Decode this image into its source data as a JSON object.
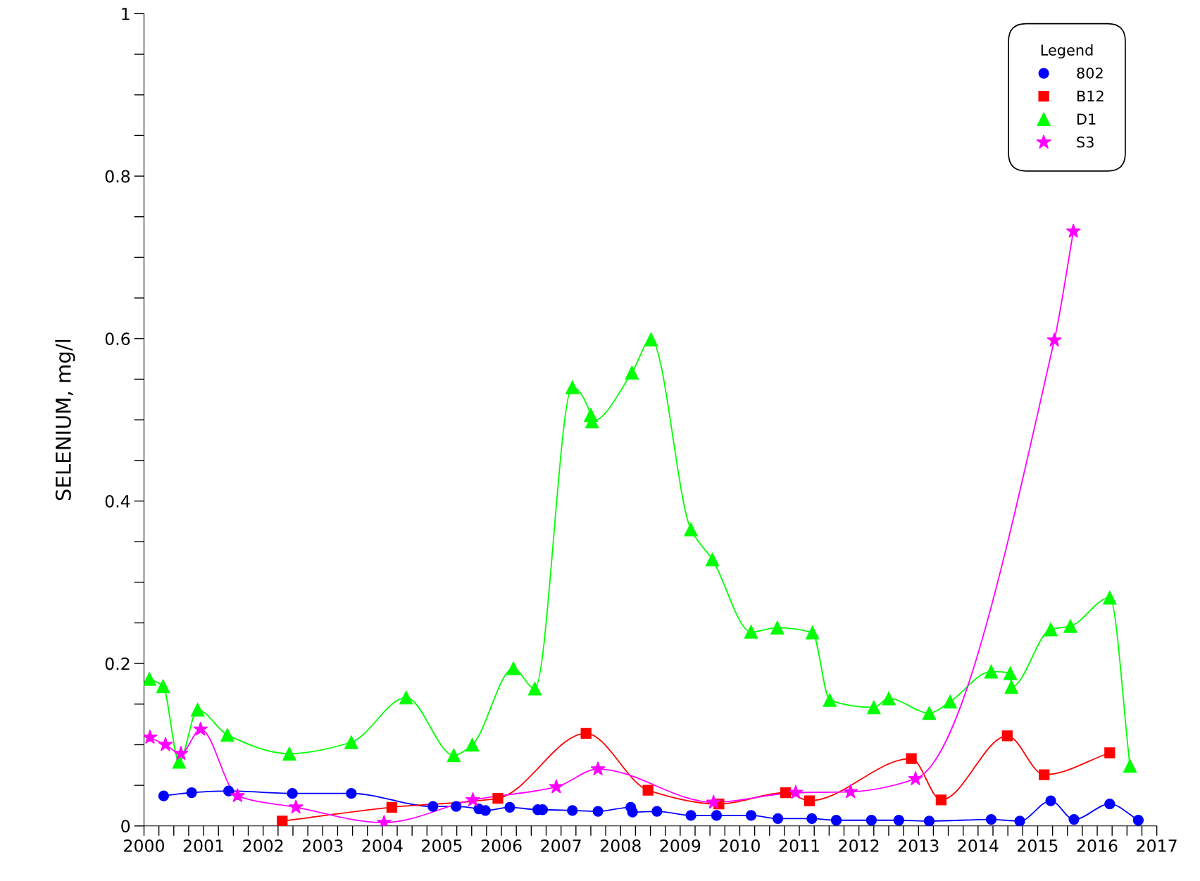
{
  "chart_data": {
    "type": "line",
    "ylabel": "SELENIUM, mg/l",
    "legend_title": "Legend",
    "legend": "top right",
    "grid": false,
    "xlim": [
      2000,
      2017
    ],
    "xticks": [
      2000,
      2001,
      2002,
      2003,
      2004,
      2005,
      2006,
      2007,
      2008,
      2009,
      2010,
      2011,
      2012,
      2013,
      2014,
      2015,
      2016,
      2017
    ],
    "ylim": [
      0,
      1
    ],
    "yticks": [
      0,
      {
        "value": 0.05,
        "label": null
      },
      {
        "value": 0.1,
        "label": null
      },
      {
        "value": 0.15,
        "label": null
      },
      0.2,
      {
        "value": 0.25,
        "label": null
      },
      {
        "value": 0.3,
        "label": null
      },
      {
        "value": 0.35,
        "label": null
      },
      0.4,
      {
        "value": 0.45,
        "label": null
      },
      {
        "value": 0.5,
        "label": null
      },
      {
        "value": 0.55,
        "label": null
      },
      0.6,
      {
        "value": 0.65,
        "label": null
      },
      {
        "value": 0.7,
        "label": null
      },
      {
        "value": 0.75,
        "label": null
      },
      0.8,
      {
        "value": 0.85,
        "label": null
      },
      {
        "value": 0.9,
        "label": null
      },
      {
        "value": 0.95,
        "label": null
      },
      1
    ],
    "series": [
      {
        "name": "802",
        "color": "#0000ff",
        "marker": "circle",
        "x": [
          2000.33,
          2000.8,
          2001.42,
          2002.49,
          2003.48,
          2004.85,
          2005.24,
          2005.62,
          2005.73,
          2006.14,
          2006.61,
          2006.69,
          2007.19,
          2007.62,
          2008.17,
          2008.2,
          2008.61,
          2009.18,
          2009.61,
          2010.19,
          2010.64,
          2011.21,
          2011.62,
          2012.21,
          2012.67,
          2013.18,
          2014.22,
          2014.7,
          2015.22,
          2015.61,
          2016.21,
          2016.69
        ],
        "values": [
          0.037,
          0.041,
          0.043,
          0.04,
          0.04,
          0.024,
          0.024,
          0.021,
          0.019,
          0.023,
          0.02,
          0.02,
          0.019,
          0.018,
          0.023,
          0.017,
          0.018,
          0.013,
          0.013,
          0.013,
          0.009,
          0.009,
          0.007,
          0.007,
          0.007,
          0.006,
          0.008,
          0.006,
          0.031,
          0.008,
          0.027,
          0.007
        ]
      },
      {
        "name": "B12",
        "color": "#ff0000",
        "marker": "square",
        "x": [
          2002.32,
          2004.16,
          2005.94,
          2007.42,
          2008.46,
          2009.65,
          2010.77,
          2011.17,
          2012.88,
          2013.38,
          2014.49,
          2015.11,
          2016.21
        ],
        "values": [
          0.006,
          0.023,
          0.034,
          0.114,
          0.044,
          0.027,
          0.041,
          0.031,
          0.083,
          0.032,
          0.111,
          0.063,
          0.09
        ]
      },
      {
        "name": "D1",
        "color": "#00ff00",
        "marker": "triangle",
        "x": [
          2000.09,
          2000.32,
          2000.59,
          2000.9,
          2001.4,
          2002.44,
          2003.48,
          2004.4,
          2005.2,
          2005.51,
          2006.2,
          2006.56,
          2007.19,
          2007.5,
          2007.52,
          2008.19,
          2008.51,
          2009.18,
          2009.54,
          2010.19,
          2010.63,
          2011.22,
          2011.51,
          2012.25,
          2012.5,
          2013.18,
          2013.53,
          2014.22,
          2014.54,
          2014.56,
          2015.22,
          2015.55,
          2016.21,
          2016.55
        ],
        "values": [
          0.181,
          0.172,
          0.079,
          0.143,
          0.112,
          0.089,
          0.103,
          0.158,
          0.087,
          0.1,
          0.194,
          0.169,
          0.54,
          0.506,
          0.498,
          0.558,
          0.599,
          0.365,
          0.328,
          0.239,
          0.244,
          0.238,
          0.155,
          0.146,
          0.157,
          0.139,
          0.153,
          0.19,
          0.188,
          0.171,
          0.242,
          0.246,
          0.281,
          0.074
        ]
      },
      {
        "name": "S3",
        "color": "#ff00ff",
        "marker": "star",
        "x": [
          2000.1,
          2000.36,
          2000.62,
          2000.95,
          2001.57,
          2002.55,
          2004.03,
          2005.52,
          2006.92,
          2007.62,
          2009.56,
          2010.94,
          2011.86,
          2012.95,
          2015.28,
          2015.6
        ],
        "values": [
          0.109,
          0.1,
          0.089,
          0.119,
          0.037,
          0.023,
          0.004,
          0.032,
          0.048,
          0.07,
          0.029,
          0.041,
          0.042,
          0.058,
          0.598,
          0.732
        ]
      }
    ]
  }
}
